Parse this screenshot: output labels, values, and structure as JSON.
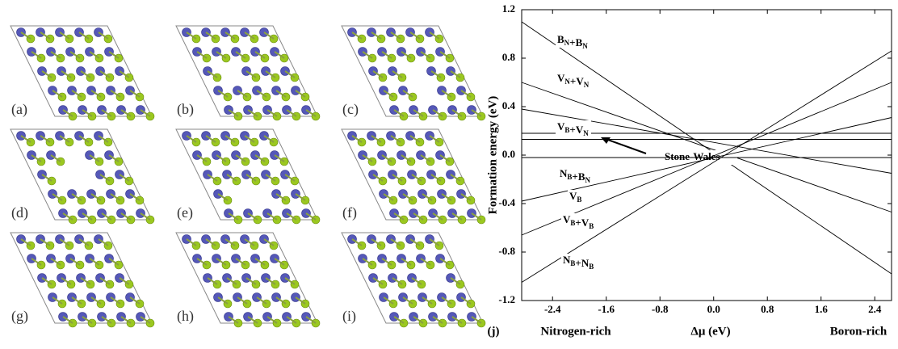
{
  "panels": [
    "(a)",
    "(b)",
    "(c)",
    "(d)",
    "(e)",
    "(f)",
    "(g)",
    "(h)",
    "(i)"
  ],
  "chart_data": {
    "type": "line",
    "panel_label": "(j)",
    "y_label": "Formation energy (eV)",
    "x_label": "Δμ (eV)",
    "x_left_note": "Nitrogen-rich",
    "x_right_note": "Boron-rich",
    "annotation": "Stone-Wales",
    "x": [
      -2.86,
      2.65
    ],
    "series": [
      {
        "name": "BN+BN",
        "color": "#000000",
        "values": [
          1.1,
          -0.98
        ]
      },
      {
        "name": "VN+VN",
        "color": "#000000",
        "values": [
          0.6,
          -0.47
        ]
      },
      {
        "color": "#000000",
        "values": [
          0.38,
          -0.15
        ]
      },
      {
        "name": "VB+VN",
        "color": "#000000",
        "values": [
          0.18,
          0.18
        ]
      },
      {
        "name": "Stone-Wales",
        "color": "#000000",
        "values": [
          0.13,
          0.13
        ]
      },
      {
        "name": "NB+BN",
        "color": "#000000",
        "values": [
          -0.02,
          -0.02
        ]
      },
      {
        "name": "VB",
        "color": "#000000",
        "values": [
          -0.38,
          0.31
        ]
      },
      {
        "name": "VB+VB",
        "color": "#000000",
        "values": [
          -0.66,
          0.6
        ]
      },
      {
        "name": "NB+NB",
        "color": "#000000",
        "values": [
          -1.05,
          0.86
        ]
      }
    ],
    "xlim": [
      -2.86,
      2.65
    ],
    "ylim": [
      -1.2,
      1.2
    ],
    "xticks": [
      -2.4,
      -1.6,
      -0.8,
      {
        "value": 0,
        "label": "0.0"
      },
      0.8,
      1.6,
      2.4
    ],
    "yticks": [
      -1.2,
      -0.8,
      -0.4,
      {
        "value": 0,
        "label": "0.0"
      },
      0.4,
      0.8,
      1.2
    ]
  }
}
